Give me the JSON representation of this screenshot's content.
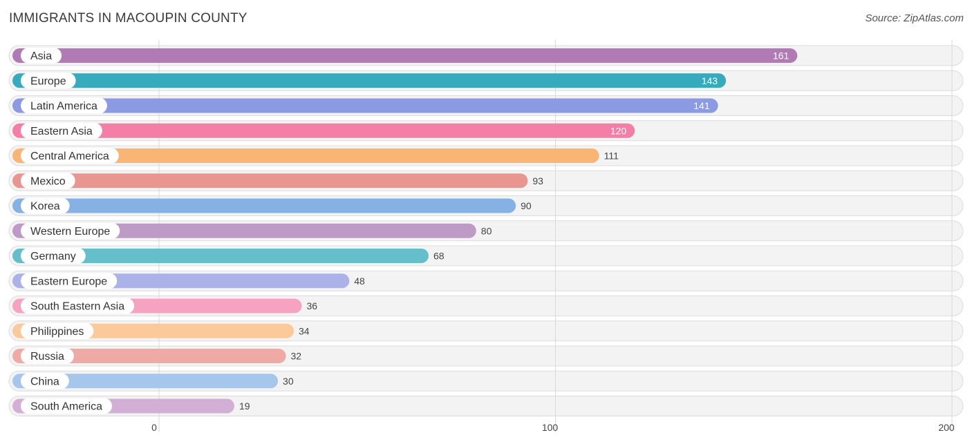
{
  "header": {
    "title": "IMMIGRANTS IN MACOUPIN COUNTY",
    "source": "Source: ZipAtlas.com"
  },
  "chart_data": {
    "type": "bar",
    "orientation": "horizontal",
    "title": "IMMIGRANTS IN MACOUPIN COUNTY",
    "xlim": [
      0,
      200
    ],
    "xticks": [
      0,
      100,
      200
    ],
    "xtick_labels": [
      "0",
      "100",
      "200"
    ],
    "categories": [
      "Asia",
      "Europe",
      "Latin America",
      "Eastern Asia",
      "Central America",
      "Mexico",
      "Korea",
      "Western Europe",
      "Germany",
      "Eastern Europe",
      "South Eastern Asia",
      "Philippines",
      "Russia",
      "China",
      "South America"
    ],
    "values": [
      161,
      143,
      141,
      120,
      111,
      93,
      90,
      80,
      68,
      48,
      36,
      34,
      32,
      30,
      19
    ],
    "value_labels": [
      "161",
      "143",
      "141",
      "120",
      "111",
      "93",
      "90",
      "80",
      "68",
      "48",
      "36",
      "34",
      "32",
      "30",
      "19"
    ],
    "colors": [
      "#b07bb5",
      "#35abbd",
      "#8b9ae3",
      "#f57ea6",
      "#fab574",
      "#ea9690",
      "#86b1e5",
      "#bd9bc6",
      "#64bfcb",
      "#aab2e8",
      "#f6a3c1",
      "#fbc99a",
      "#f0aaa5",
      "#a6c6ec",
      "#d2b0d6"
    ],
    "value_inside": [
      true,
      true,
      true,
      true,
      false,
      false,
      false,
      false,
      false,
      false,
      false,
      false,
      false,
      false,
      false
    ]
  }
}
